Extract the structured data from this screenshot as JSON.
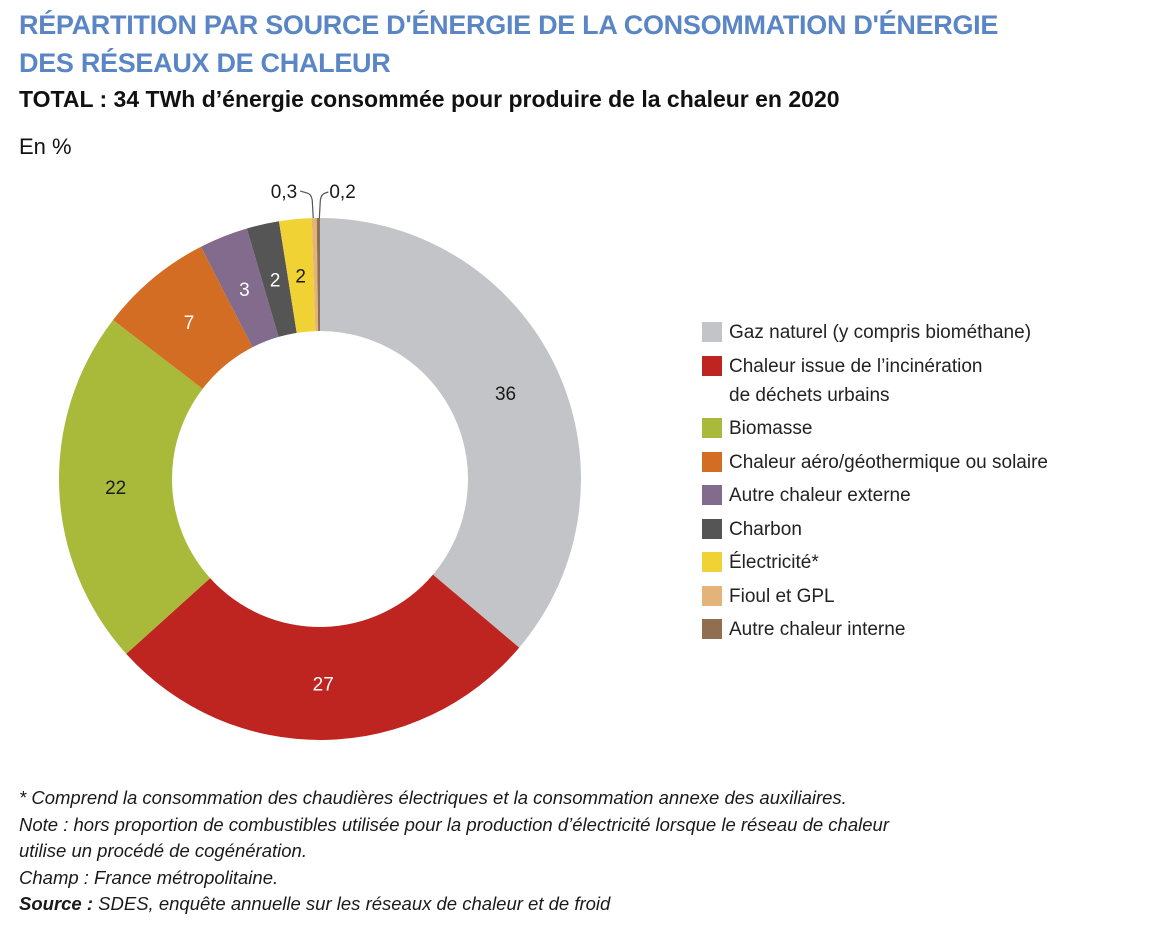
{
  "header": {
    "title_line1": "RÉPARTITION PAR SOURCE D'ÉNERGIE DE LA CONSOMMATION D'ÉNERGIE",
    "title_line2": "DES RÉSEAUX DE CHALEUR",
    "subtitle": "TOTAL : 34 TWh d’énergie consommée pour produire de la chaleur en 2020",
    "unit": "En %"
  },
  "chart_data": {
    "type": "pie",
    "variant": "donut",
    "title": "RÉPARTITION PAR SOURCE D'ÉNERGIE DE LA CONSOMMATION D'ÉNERGIE DES RÉSEAUX DE CHALEUR",
    "subtitle": "TOTAL : 34 TWh d’énergie consommée pour produire de la chaleur en 2020",
    "unit": "En %",
    "start": "top",
    "direction": "clockwise",
    "legend_position": "right",
    "slices": [
      {
        "label": "Gaz naturel (y compris biométhane)",
        "value": 36,
        "display": "36",
        "color": "#c3c4c8",
        "label_color": "#1a1a1a"
      },
      {
        "label": "Chaleur issue de l’incinération\nde déchets urbains",
        "value": 27,
        "display": "27",
        "color": "#bf2520",
        "label_color": "#ffffff"
      },
      {
        "label": "Biomasse",
        "value": 22,
        "display": "22",
        "color": "#a9ba3a",
        "label_color": "#1a1a1a"
      },
      {
        "label": "Chaleur aéro/géothermique ou solaire",
        "value": 7,
        "display": "7",
        "color": "#d46d24",
        "label_color": "#ffffff"
      },
      {
        "label": "Autre chaleur externe",
        "value": 3,
        "display": "3",
        "color": "#826b8c",
        "label_color": "#ffffff"
      },
      {
        "label": "Charbon",
        "value": 2,
        "display": "2",
        "color": "#555556",
        "label_color": "#ffffff"
      },
      {
        "label": "Électricité*",
        "value": 2,
        "display": "2",
        "color": "#f0d234",
        "label_color": "#1a1a1a"
      },
      {
        "label": "Fioul et GPL",
        "value": 0.3,
        "display": "0,3",
        "color": "#e3b47a",
        "label_color": "#1a1a1a",
        "outside": "left"
      },
      {
        "label": "Autre chaleur interne",
        "value": 0.2,
        "display": "0,2",
        "color": "#8f6e52",
        "label_color": "#1a1a1a",
        "outside": "right"
      }
    ]
  },
  "notes": {
    "footnote": "* Comprend la consommation des chaudières électriques et la consommation annexe des auxiliaires.",
    "note_line1": "Note : hors proportion de combustibles utilisée pour la production d’électricité lorsque le réseau de chaleur",
    "note_line2": "utilise un procédé de cogénération.",
    "champ": "Champ : France métropolitaine.",
    "source_label": "Source :",
    "source_text": " SDES, enquête annuelle sur les réseaux de chaleur et de froid"
  }
}
